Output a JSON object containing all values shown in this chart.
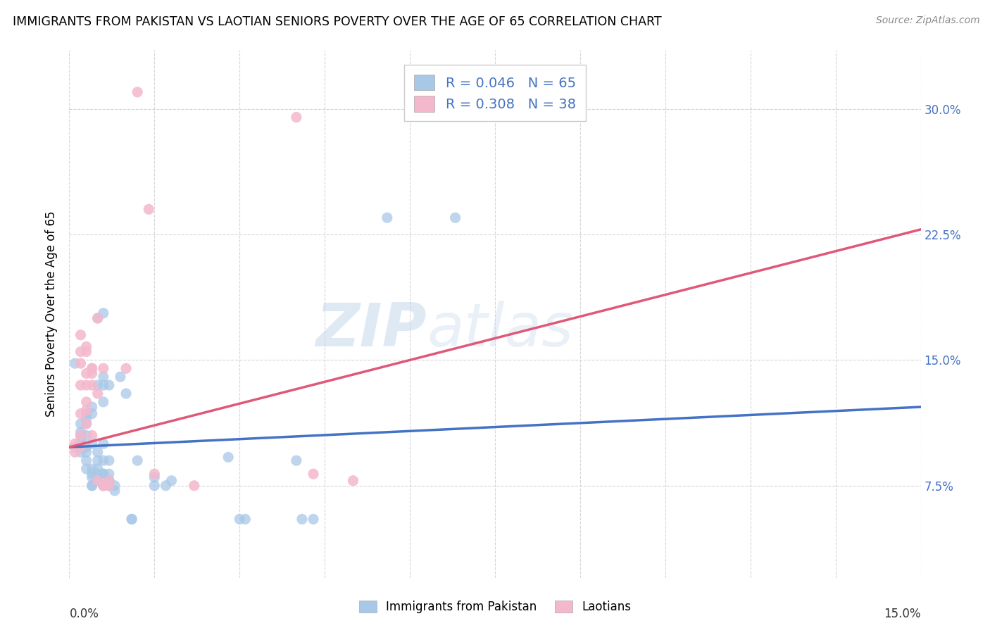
{
  "title": "IMMIGRANTS FROM PAKISTAN VS LAOTIAN SENIORS POVERTY OVER THE AGE OF 65 CORRELATION CHART",
  "source": "Source: ZipAtlas.com",
  "ylabel": "Seniors Poverty Over the Age of 65",
  "yticks": [
    "7.5%",
    "15.0%",
    "22.5%",
    "30.0%"
  ],
  "ytick_vals": [
    0.075,
    0.15,
    0.225,
    0.3
  ],
  "xlim": [
    0.0,
    0.15
  ],
  "ylim": [
    0.02,
    0.335
  ],
  "watermark_zip": "ZIP",
  "watermark_atlas": "atlas",
  "blue_color": "#a8c8e8",
  "pink_color": "#f4b8cc",
  "line_blue": "#4472c4",
  "line_pink": "#e05878",
  "line_blue_y0": 0.098,
  "line_blue_y1": 0.122,
  "line_pink_y0": 0.098,
  "line_pink_y1": 0.228,
  "pakistan_points": [
    [
      0.001,
      0.148
    ],
    [
      0.002,
      0.105
    ],
    [
      0.002,
      0.098
    ],
    [
      0.002,
      0.112
    ],
    [
      0.002,
      0.102
    ],
    [
      0.002,
      0.095
    ],
    [
      0.002,
      0.107
    ],
    [
      0.002,
      0.1
    ],
    [
      0.003,
      0.098
    ],
    [
      0.003,
      0.095
    ],
    [
      0.003,
      0.105
    ],
    [
      0.003,
      0.112
    ],
    [
      0.003,
      0.118
    ],
    [
      0.003,
      0.115
    ],
    [
      0.003,
      0.09
    ],
    [
      0.003,
      0.085
    ],
    [
      0.004,
      0.122
    ],
    [
      0.004,
      0.118
    ],
    [
      0.004,
      0.08
    ],
    [
      0.004,
      0.075
    ],
    [
      0.004,
      0.1
    ],
    [
      0.004,
      0.085
    ],
    [
      0.004,
      0.082
    ],
    [
      0.004,
      0.075
    ],
    [
      0.005,
      0.095
    ],
    [
      0.005,
      0.082
    ],
    [
      0.005,
      0.078
    ],
    [
      0.005,
      0.175
    ],
    [
      0.005,
      0.135
    ],
    [
      0.005,
      0.09
    ],
    [
      0.005,
      0.085
    ],
    [
      0.006,
      0.178
    ],
    [
      0.006,
      0.135
    ],
    [
      0.006,
      0.125
    ],
    [
      0.006,
      0.1
    ],
    [
      0.006,
      0.082
    ],
    [
      0.006,
      0.14
    ],
    [
      0.006,
      0.09
    ],
    [
      0.006,
      0.082
    ],
    [
      0.006,
      0.075
    ],
    [
      0.007,
      0.082
    ],
    [
      0.007,
      0.078
    ],
    [
      0.007,
      0.135
    ],
    [
      0.007,
      0.09
    ],
    [
      0.007,
      0.078
    ],
    [
      0.007,
      0.075
    ],
    [
      0.008,
      0.072
    ],
    [
      0.008,
      0.075
    ],
    [
      0.009,
      0.14
    ],
    [
      0.01,
      0.13
    ],
    [
      0.011,
      0.055
    ],
    [
      0.011,
      0.055
    ],
    [
      0.012,
      0.09
    ],
    [
      0.015,
      0.08
    ],
    [
      0.015,
      0.075
    ],
    [
      0.017,
      0.075
    ],
    [
      0.018,
      0.078
    ],
    [
      0.028,
      0.092
    ],
    [
      0.03,
      0.055
    ],
    [
      0.031,
      0.055
    ],
    [
      0.04,
      0.09
    ],
    [
      0.041,
      0.055
    ],
    [
      0.043,
      0.055
    ],
    [
      0.056,
      0.235
    ],
    [
      0.068,
      0.235
    ]
  ],
  "laotian_points": [
    [
      0.001,
      0.098
    ],
    [
      0.001,
      0.1
    ],
    [
      0.001,
      0.095
    ],
    [
      0.002,
      0.118
    ],
    [
      0.002,
      0.105
    ],
    [
      0.002,
      0.098
    ],
    [
      0.002,
      0.165
    ],
    [
      0.002,
      0.155
    ],
    [
      0.002,
      0.148
    ],
    [
      0.002,
      0.135
    ],
    [
      0.003,
      0.158
    ],
    [
      0.003,
      0.142
    ],
    [
      0.003,
      0.125
    ],
    [
      0.003,
      0.112
    ],
    [
      0.003,
      0.155
    ],
    [
      0.003,
      0.135
    ],
    [
      0.003,
      0.12
    ],
    [
      0.004,
      0.142
    ],
    [
      0.004,
      0.105
    ],
    [
      0.004,
      0.145
    ],
    [
      0.004,
      0.145
    ],
    [
      0.004,
      0.135
    ],
    [
      0.005,
      0.13
    ],
    [
      0.005,
      0.078
    ],
    [
      0.005,
      0.175
    ],
    [
      0.006,
      0.145
    ],
    [
      0.006,
      0.075
    ],
    [
      0.006,
      0.075
    ],
    [
      0.007,
      0.078
    ],
    [
      0.007,
      0.075
    ],
    [
      0.01,
      0.145
    ],
    [
      0.012,
      0.31
    ],
    [
      0.014,
      0.24
    ],
    [
      0.015,
      0.082
    ],
    [
      0.022,
      0.075
    ],
    [
      0.04,
      0.295
    ],
    [
      0.043,
      0.082
    ],
    [
      0.05,
      0.078
    ]
  ],
  "background_color": "#ffffff",
  "grid_color": "#cccccc"
}
